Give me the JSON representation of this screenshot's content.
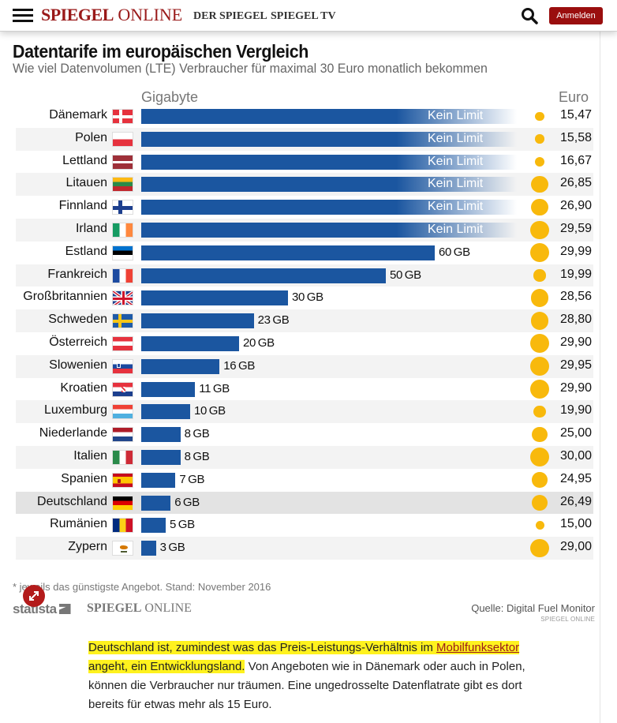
{
  "header": {
    "logo_bold": "SPIEGEL",
    "logo_light": "ONLINE",
    "nav": [
      "DER SPIEGEL",
      "SPIEGEL TV"
    ],
    "login_label": "Anmelden",
    "icons": {
      "menu": "hamburger-menu-icon",
      "search": "search-icon"
    }
  },
  "colors": {
    "bar": "#1b56a0",
    "price_dot": "#f8b90c",
    "brand": "#9a1a1a",
    "highlight": "#fff21e"
  },
  "chart_data": {
    "type": "bar",
    "orientation": "horizontal",
    "title": "Datentarife im europäischen Vergleich",
    "subtitle": "Wie viel Datenvolumen (LTE) Verbraucher für maximal 30 Euro monatlich bekommen",
    "xlabel": "Gigabyte",
    "price_label": "Euro",
    "unlimited_label": "Kein Limit",
    "unit": "GB",
    "highlighted_category": "Deutschland",
    "categories": [
      "Dänemark",
      "Polen",
      "Lettland",
      "Litauen",
      "Finnland",
      "Irland",
      "Estland",
      "Frankreich",
      "Großbritannien",
      "Schweden",
      "Österreich",
      "Slowenien",
      "Kroatien",
      "Luxemburg",
      "Niederlande",
      "Italien",
      "Spanien",
      "Deutschland",
      "Rumänien",
      "Zypern"
    ],
    "series": [
      {
        "name": "Datenvolumen (GB)",
        "values": [
          null,
          null,
          null,
          null,
          null,
          null,
          60,
          50,
          30,
          23,
          20,
          16,
          11,
          10,
          8,
          8,
          7,
          6,
          5,
          3
        ],
        "unlimited": [
          true,
          true,
          true,
          true,
          true,
          true,
          false,
          false,
          false,
          false,
          false,
          false,
          false,
          false,
          false,
          false,
          false,
          false,
          false,
          false
        ]
      },
      {
        "name": "Preis (Euro)",
        "values": [
          "15,47",
          "15,58",
          "16,67",
          "26,85",
          "26,90",
          "29,59",
          "29,99",
          "19,99",
          "28,56",
          "28,80",
          "29,90",
          "29,95",
          "29,90",
          "19,90",
          "25,00",
          "30,00",
          "24,95",
          "26,49",
          "15,00",
          "29,00"
        ]
      }
    ],
    "flags": [
      "dk",
      "pl",
      "lv",
      "lt",
      "fi",
      "ie",
      "ee",
      "fr",
      "gb",
      "se",
      "at",
      "si",
      "hr",
      "lu",
      "nl",
      "it",
      "es",
      "de",
      "ro",
      "cy"
    ],
    "xlim": [
      0,
      60
    ]
  },
  "footer": {
    "footnote": "* jeweils das günstigste Angebot. Stand: November 2016",
    "statista": "statista",
    "spiegel_bold": "SPIEGEL",
    "spiegel_light": "ONLINE",
    "source": "Quelle: Digital Fuel Monitor",
    "source_sub": "SPIEGEL ONLINE",
    "expand_icon": "expand-arrows-icon"
  },
  "article": {
    "hl_1": "Deutschland ist, zumindest was das Preis-Leistungs-Verhältnis im ",
    "link": "Mobilfunksektor",
    "hl_2": " angeht, ein Entwicklungsland.",
    "rest": " Von Angeboten wie in Dänemark oder auch in Polen, können die Verbraucher nur träumen. Eine ungedrosselte Datenflatrate gibt es dort bereits für etwas mehr als 15 Euro."
  }
}
